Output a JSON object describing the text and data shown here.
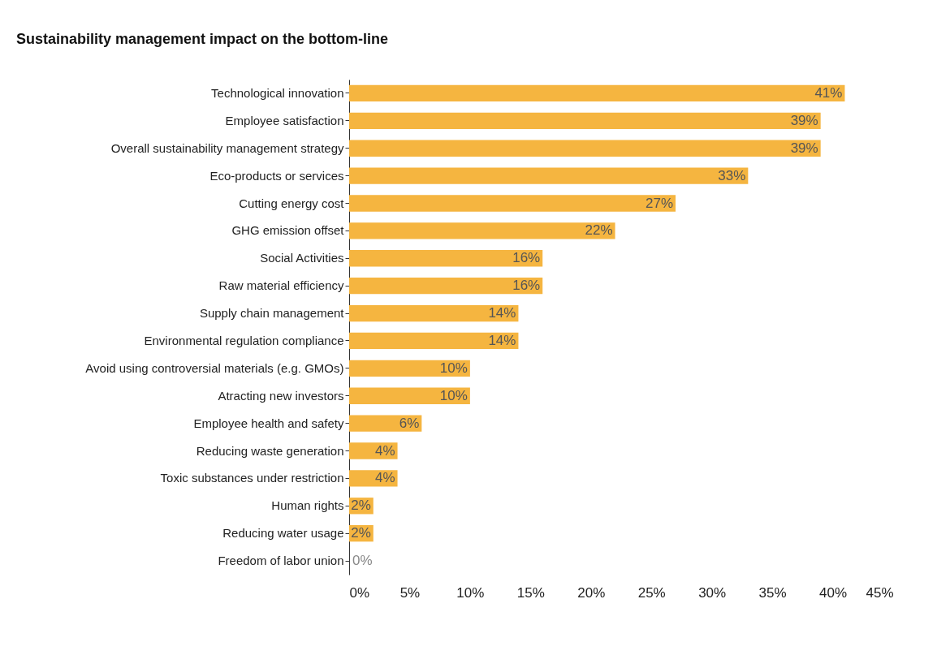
{
  "chart_data": {
    "type": "bar",
    "orientation": "horizontal",
    "title": "Sustainability management impact on the bottom-line",
    "categories": [
      "Technological innovation",
      "Employee satisfaction",
      "Overall sustainability management strategy",
      "Eco-products or services",
      "Cutting energy cost",
      "GHG emission offset",
      "Social Activities",
      "Raw material efficiency",
      "Supply chain management",
      "Environmental regulation compliance",
      "Avoid using controversial materials (e.g. GMOs)",
      "Atracting new investors",
      "Employee health and safety",
      "Reducing waste generation",
      "Toxic substances under restriction",
      "Human rights",
      "Reducing water usage",
      "Freedom of labor union"
    ],
    "values": [
      41,
      39,
      39,
      33,
      27,
      22,
      16,
      16,
      14,
      14,
      10,
      10,
      6,
      4,
      4,
      2,
      2,
      0
    ],
    "value_labels": [
      "41%",
      "39%",
      "39%",
      "33%",
      "27%",
      "22%",
      "16%",
      "16%",
      "14%",
      "14%",
      "10%",
      "10%",
      "6%",
      "4%",
      "4%",
      "2%",
      "2%",
      "0%"
    ],
    "color": "#f5b540",
    "xlim": [
      0,
      45
    ],
    "xticks": [
      {
        "value": 0,
        "label": "0%"
      },
      {
        "value": 5,
        "label": "5%"
      },
      {
        "value": 10,
        "label": "10%"
      },
      {
        "value": 15,
        "label": "15%"
      },
      {
        "value": 20,
        "label": "20%"
      },
      {
        "value": 25,
        "label": "25%"
      },
      {
        "value": 30,
        "label": "30%"
      },
      {
        "value": 35,
        "label": "35%"
      },
      {
        "value": 40,
        "label": "40%"
      },
      {
        "value": 45,
        "label": "45%"
      }
    ],
    "grid": false
  }
}
